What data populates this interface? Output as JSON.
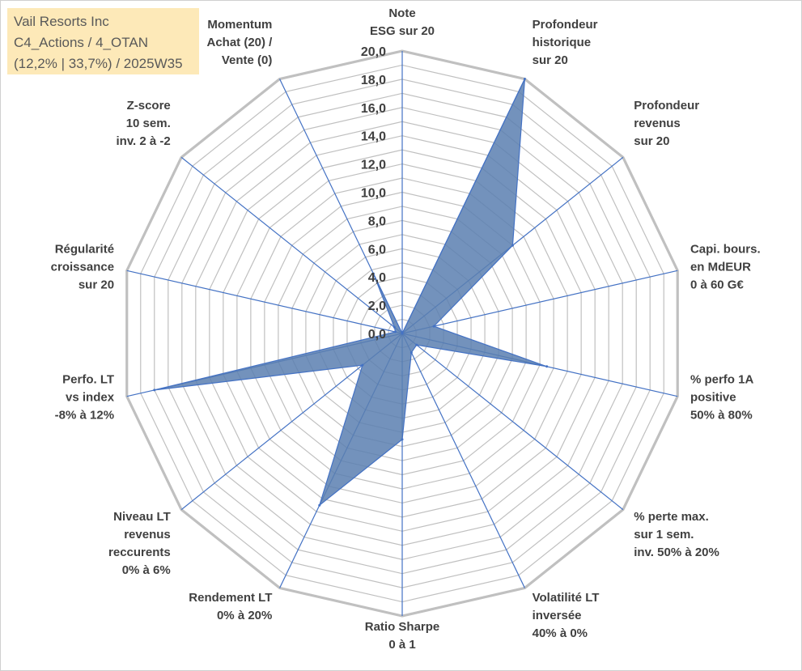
{
  "title_box": {
    "line1": "Vail Resorts Inc",
    "line2": "C4_Actions / 4_OTAN",
    "line3": "(12,2% | 33,7%) / 2025W35"
  },
  "chart_data": {
    "type": "radar",
    "fill_color": "#5a7fb0",
    "line_color": "#4472c4",
    "grid_color": "#c0c0c0",
    "rlim": [
      0,
      20
    ],
    "ticks": [
      "0,0",
      "2,0",
      "4,0",
      "6,0",
      "8,0",
      "10,0",
      "12,0",
      "14,0",
      "16,0",
      "18,0",
      "20,0"
    ],
    "axes": [
      {
        "label": [
          "Note",
          "ESG sur 20"
        ],
        "value": 0
      },
      {
        "label": [
          "Profondeur",
          "historique",
          "sur 20"
        ],
        "value": 20
      },
      {
        "label": [
          "Profondeur",
          "revenus",
          "sur 20"
        ],
        "value": 10
      },
      {
        "label": [
          "Capi. bours.",
          "en MdEUR",
          "0 à 60 G€"
        ],
        "value": 2.3
      },
      {
        "label": [
          "% perfo 1A",
          "positive",
          "50% à 80%"
        ],
        "value": 10.5
      },
      {
        "label": [
          "% perte max.",
          "sur 1 sem.",
          "inv. 50% à 20%"
        ],
        "value": 1.3
      },
      {
        "label": [
          "Volatilité LT",
          "inversée",
          "40% à 0%"
        ],
        "value": 1.5
      },
      {
        "label": [
          "Ratio Sharpe",
          "0 à 1"
        ],
        "value": 7.5
      },
      {
        "label": [
          "Rendement LT",
          "0% à 20%"
        ],
        "value": 13.5
      },
      {
        "label": [
          "Niveau LT",
          "revenus",
          "reccurents",
          "0% à 6%"
        ],
        "value": 3.6
      },
      {
        "label": [
          "Perfo. LT",
          "vs index",
          "-8% à 12%"
        ],
        "value": 18
      },
      {
        "label": [
          "Régularité",
          "croissance",
          "sur 20"
        ],
        "value": 0.5
      },
      {
        "label": [
          "Z-score",
          "10 sem.",
          "inv. 2 à -2"
        ],
        "value": 0.7
      },
      {
        "label": [
          "Momentum",
          "Achat (20) /",
          "Vente (0)"
        ],
        "value": 4.7
      }
    ]
  }
}
